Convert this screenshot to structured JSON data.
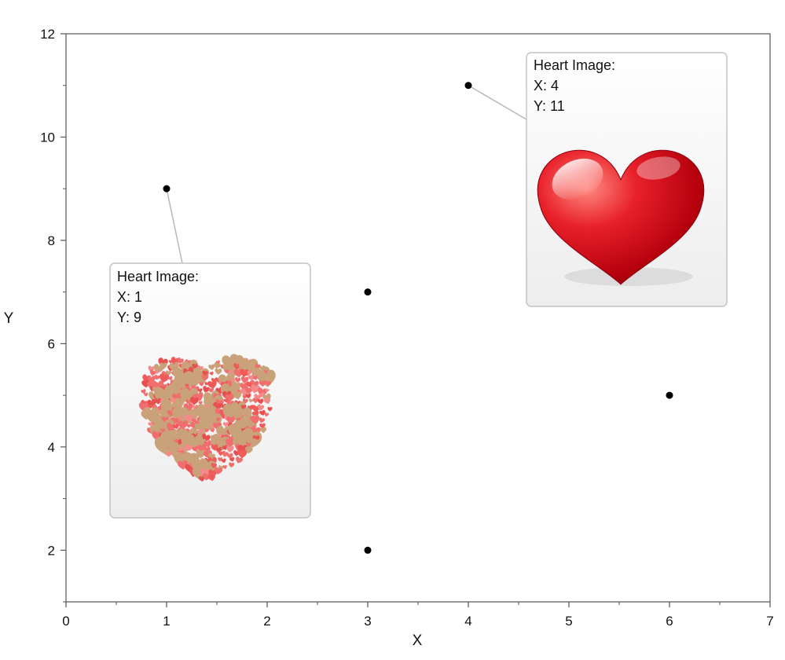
{
  "chart_data": {
    "type": "scatter",
    "xlabel": "X",
    "ylabel": "Y",
    "xlim": [
      0,
      7
    ],
    "ylim": [
      1,
      12
    ],
    "x_ticks": [
      0,
      1,
      2,
      3,
      4,
      5,
      6,
      7
    ],
    "y_ticks": [
      2,
      4,
      6,
      8,
      10,
      12
    ],
    "grid": false,
    "points": [
      {
        "x": 1,
        "y": 9
      },
      {
        "x": 3,
        "y": 7
      },
      {
        "x": 3,
        "y": 2
      },
      {
        "x": 4,
        "y": 11
      },
      {
        "x": 6,
        "y": 5
      }
    ],
    "annotations": [
      {
        "point_index": 0,
        "title": "Heart Image:",
        "x_text": "X: 1",
        "y_text": "Y: 9",
        "image": "heart-pattern"
      },
      {
        "point_index": 3,
        "title": "Heart Image:",
        "x_text": "X: 4",
        "y_text": "Y: 11",
        "image": "red-glossy-heart"
      }
    ],
    "colors": {
      "point": "#000000",
      "axis": "#555555",
      "tooltip_border": "#c4c4c4"
    }
  }
}
